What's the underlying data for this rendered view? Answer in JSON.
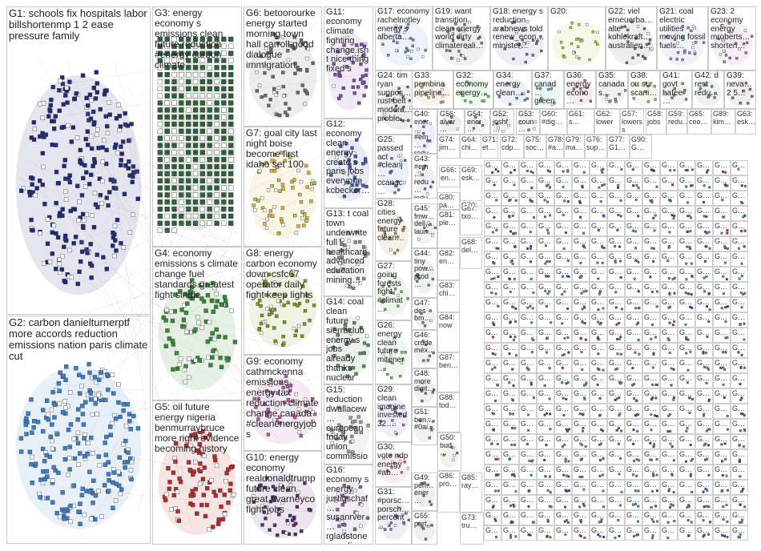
{
  "graph": {
    "groups": [
      {
        "id": "G1",
        "label": "G1: schools fix hospitals labor billshortenmp 1 2 ease pressure family",
        "color": "#1f2a7a"
      },
      {
        "id": "G2",
        "label": "G2: carbon danielturnerptf more accords reduction emissions nation paris climate cut",
        "color": "#3a7fc8"
      },
      {
        "id": "G3",
        "label": "G3: energy economy s emissions clean future reduction #energy carbon climate",
        "color": "#2e5e3a"
      },
      {
        "id": "G4",
        "label": "G4: economy emissions s climate change fuel standards greatest fight single",
        "color": "#2f8a2f"
      },
      {
        "id": "G5",
        "label": "G5: oil future energy nigeria benmurraybruce more right evidence becoming history",
        "color": "#b52a2a"
      },
      {
        "id": "G6",
        "label": "G6: betoorourke energy started morning town hall carroll good dialogue immigration",
        "color": "#6a6a6a"
      },
      {
        "id": "G7",
        "label": "G7: goal city last night boise become first idaho set 100",
        "color": "#d8b33a"
      },
      {
        "id": "G8",
        "label": "G8: energy carbon economy down csfc67 operator daily fight keep lights",
        "color": "#7a9a1a"
      },
      {
        "id": "G9",
        "label": "G9: economy cathmckenna emissions energy tax reduction climate change canada #cleanenergyjobs",
        "color": "#b05aa8"
      },
      {
        "id": "G10",
        "label": "G10: energy economy realdonaldtrump future clean great t varneyco fight jobs",
        "color": "#5a2a6a"
      },
      {
        "id": "G11",
        "label": "G11: economy climate fighting change isn t nice thing fixed s",
        "color": "#7a4ab0"
      },
      {
        "id": "G12",
        "label": "G12: economy clean energy create s paris jobs everyone kcbecker…",
        "color": "#3a5ab0"
      },
      {
        "id": "G13",
        "label": "G13: t coal town underwrite full healthcare advanced education mining…",
        "color": "#8a8a8a"
      },
      {
        "id": "G14",
        "label": "G14: coal clean future sierraclub energy s jobs already thanks nuclear",
        "color": "#5a8a5a"
      },
      {
        "id": "G15",
        "label": "G15: reduction dwallacew… european friday union commission accused…",
        "color": "#9a9a9a"
      },
      {
        "id": "G16",
        "label": "G16: economy s energy justinschaf… susanrver… rgladstone canadian_…",
        "color": "#8a5a9a"
      },
      {
        "id": "G17",
        "label": "G17: economy rachelnotley energy s alberta…",
        "color": "#6a8ad0"
      },
      {
        "id": "G18",
        "label": "G18: energy s reduction arabnews told renew_econ… minister…",
        "color": "#6a6a9a"
      },
      {
        "id": "G19",
        "label": "G19: want transition clean energy world dirty climatereali…",
        "color": "#7a7a7a"
      },
      {
        "id": "G20",
        "label": "G20:",
        "color": "#b8c83a"
      },
      {
        "id": "G21",
        "label": "G21: coal electric utilities moving fossil fuels…",
        "color": "#8a8ac8"
      },
      {
        "id": "G22",
        "label": "G22: viel erneuerba… alte kohlekraft… australien…",
        "color": "#6a6a6a"
      },
      {
        "id": "G23",
        "label": "G23: 2 economy energy mroberts… shorten…",
        "color": "#b06ab0"
      },
      {
        "id": "G24",
        "label": "G24: tim ryan suppos… rust belt modera… proble…",
        "color": "#6a6a6a"
      },
      {
        "id": "G25",
        "label": "G25: passed act #cleanj… ccanac…",
        "color": "#4a7ab0"
      },
      {
        "id": "G26",
        "label": "G26: energy clean future mitener…",
        "color": "#7ab07a"
      },
      {
        "id": "G27",
        "label": "G27: going forests fight #climat…",
        "color": "#6ab06a"
      },
      {
        "id": "G28",
        "label": "G28: cities energy future clean…",
        "color": "#b08a4a"
      },
      {
        "id": "G29",
        "label": "G29: clean imagine invested 32…",
        "color": "#8a6ac8"
      },
      {
        "id": "G30",
        "label": "G30: vote ndp energy #ab…",
        "color": "#c86a8a"
      },
      {
        "id": "G31",
        "label": "G31: #porsc… porsch… percent…",
        "color": "#8a6ab0"
      },
      {
        "id": "G32",
        "label": "G32: economy energy…",
        "color": "#6ac86a"
      },
      {
        "id": "G33",
        "label": "G33: pembina pipeline…",
        "color": "#c8a86a"
      },
      {
        "id": "G34",
        "label": "G34: energy clean…",
        "color": "#6a8ab0"
      },
      {
        "id": "G35",
        "label": "G35: canada s…",
        "color": "#8a8a8a"
      },
      {
        "id": "G36",
        "label": "G36: energy econo…",
        "color": "#b06a6a"
      },
      {
        "id": "G37",
        "label": "G37: canad… green…",
        "color": "#6ab0b0"
      },
      {
        "id": "G38",
        "label": "G38: ou sur scani…",
        "color": "#b0b06a"
      },
      {
        "id": "G39",
        "label": "G39: neva… 2 5…",
        "color": "#8a6a6a"
      },
      {
        "id": "G40",
        "label": "G40: ener… #em… redu…",
        "color": "#6a6ab0"
      },
      {
        "id": "G41",
        "label": "G41: govt hafee…",
        "color": "#8a8a6a"
      },
      {
        "id": "G42",
        "label": "G42: d rest rédu…",
        "color": "#6a8a8a"
      },
      {
        "id": "G43",
        "label": "G43: #em… redu… indu…",
        "color": "#8a6a8a"
      },
      {
        "id": "G44",
        "label": "G44: tiny pow… prod…",
        "color": "#6a8a6a"
      },
      {
        "id": "G45",
        "label": "G45: fmw… dell… laun…",
        "color": "#8a8a8a"
      },
      {
        "id": "G46",
        "label": "G46: crude méx…",
        "color": "#8a7a6a"
      },
      {
        "id": "G47",
        "label": "G47: des bm…",
        "color": "#7a7a8a"
      },
      {
        "id": "G48",
        "label": "G48: more digit…",
        "color": "#6a7a8a"
      },
      {
        "id": "G49",
        "label": "G49: peh… ener…",
        "color": "#8a6a7a"
      },
      {
        "id": "G50",
        "label": "G50: bud…",
        "color": "#7a8a6a"
      },
      {
        "id": "G51",
        "label": "G51: ben… #0ai…",
        "color": "#6a8a7a"
      },
      {
        "id": "G52",
        "label": "G52: joshf…",
        "color": "#7a6a8a"
      },
      {
        "id": "G53",
        "label": "G53: coun…",
        "color": "#8a7a7a"
      },
      {
        "id": "G54",
        "label": "G54: ener…",
        "color": "#7a8a7a"
      },
      {
        "id": "G55",
        "label": "G55: part…",
        "color": "#7a7a6a"
      },
      {
        "id": "G56",
        "label": "G56: alvar…",
        "color": "#6a7a7a"
      }
    ],
    "tiny_groups": [
      "G57:",
      "G58:",
      "G59:",
      "G60:",
      "G61:",
      "G62:",
      "G63:",
      "G64:",
      "G65:",
      "G66:",
      "G67:",
      "G68:",
      "G69:",
      "G70:",
      "G71:",
      "G72:",
      "G73:",
      "G74:",
      "G75:",
      "G76:",
      "G77:",
      "G78:",
      "G79:",
      "G80:",
      "G81:",
      "G82:",
      "G83:",
      "G84:",
      "G85:",
      "G86:",
      "G87:",
      "G88:",
      "G89:",
      "G90:"
    ],
    "tiny_texts": {
      "G57": "G57: lowers s",
      "G58": "G58: jobs",
      "G59": "G59: redu…",
      "G60": "G60: #dig…",
      "G61": "G61: s…",
      "G62": "G62: lower",
      "G63": "G63: esk…",
      "G64": "G64: chi…",
      "G65": "G65: ceo…",
      "G66": "G66: en…",
      "G67": "G67: txo…",
      "G68": "G68: del…",
      "G69": "G69: esk…",
      "G70": "G70: pa…",
      "G71": "G71: et…",
      "G72": "G72: cdp…",
      "G73": "G73: tru…",
      "G74": "G74: jim…",
      "G75": "G75: soc…",
      "G76": "G76: sup…",
      "G77": "G77: G1…",
      "G78": "G78: #a…",
      "G79": "G79: ma…",
      "G80": "G80: pa…",
      "G81": "G81: ple…",
      "G82": "G82: en…",
      "G83": "G83: chi…",
      "G84": "G84: now",
      "G85": "G85: ray…",
      "G86": "G86: pro…",
      "G87": "G87: ben…",
      "G88": "G88: tod…",
      "G89": "G89: kim…",
      "G90": "G90: G…"
    },
    "grid_label": "G…"
  }
}
